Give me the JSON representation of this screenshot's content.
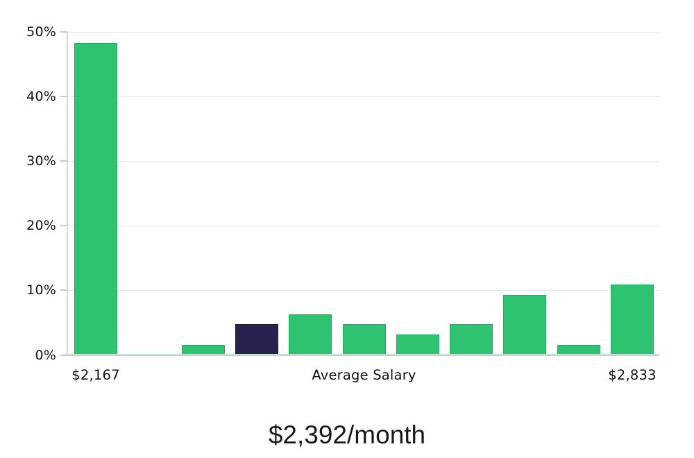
{
  "chart_data": {
    "type": "bar",
    "title": "$2,392/month",
    "values": [
      48.3,
      0.15,
      1.6,
      4.8,
      6.3,
      4.8,
      3.2,
      4.8,
      9.3,
      1.6,
      10.9
    ],
    "highlight_index": 3,
    "ylim": [
      0,
      50
    ],
    "yticks": [
      0,
      10,
      20,
      30,
      40,
      50
    ],
    "ytick_suffix": "%",
    "xtick_labels": [
      {
        "bar_index": 0,
        "label": "$2,167"
      },
      {
        "bar_index": 5,
        "label": "Average Salary"
      },
      {
        "bar_index": 10,
        "label": "$2,833"
      }
    ],
    "grid": "horizontal",
    "legend": "none",
    "colors": {
      "bar": "#2ec271",
      "bar_border": "#27a862",
      "highlight_bar": "#28234e",
      "highlight_border": "#1b1839",
      "gridline": "#e5e5e5",
      "spine": "#d8d8d8",
      "axis_line": "#cbcbcb",
      "axis_accent": "#b9e6cf",
      "tick": "#c6c6c6",
      "label_text": "#111111",
      "title_text": "#191919",
      "background": "#ffffff"
    }
  }
}
